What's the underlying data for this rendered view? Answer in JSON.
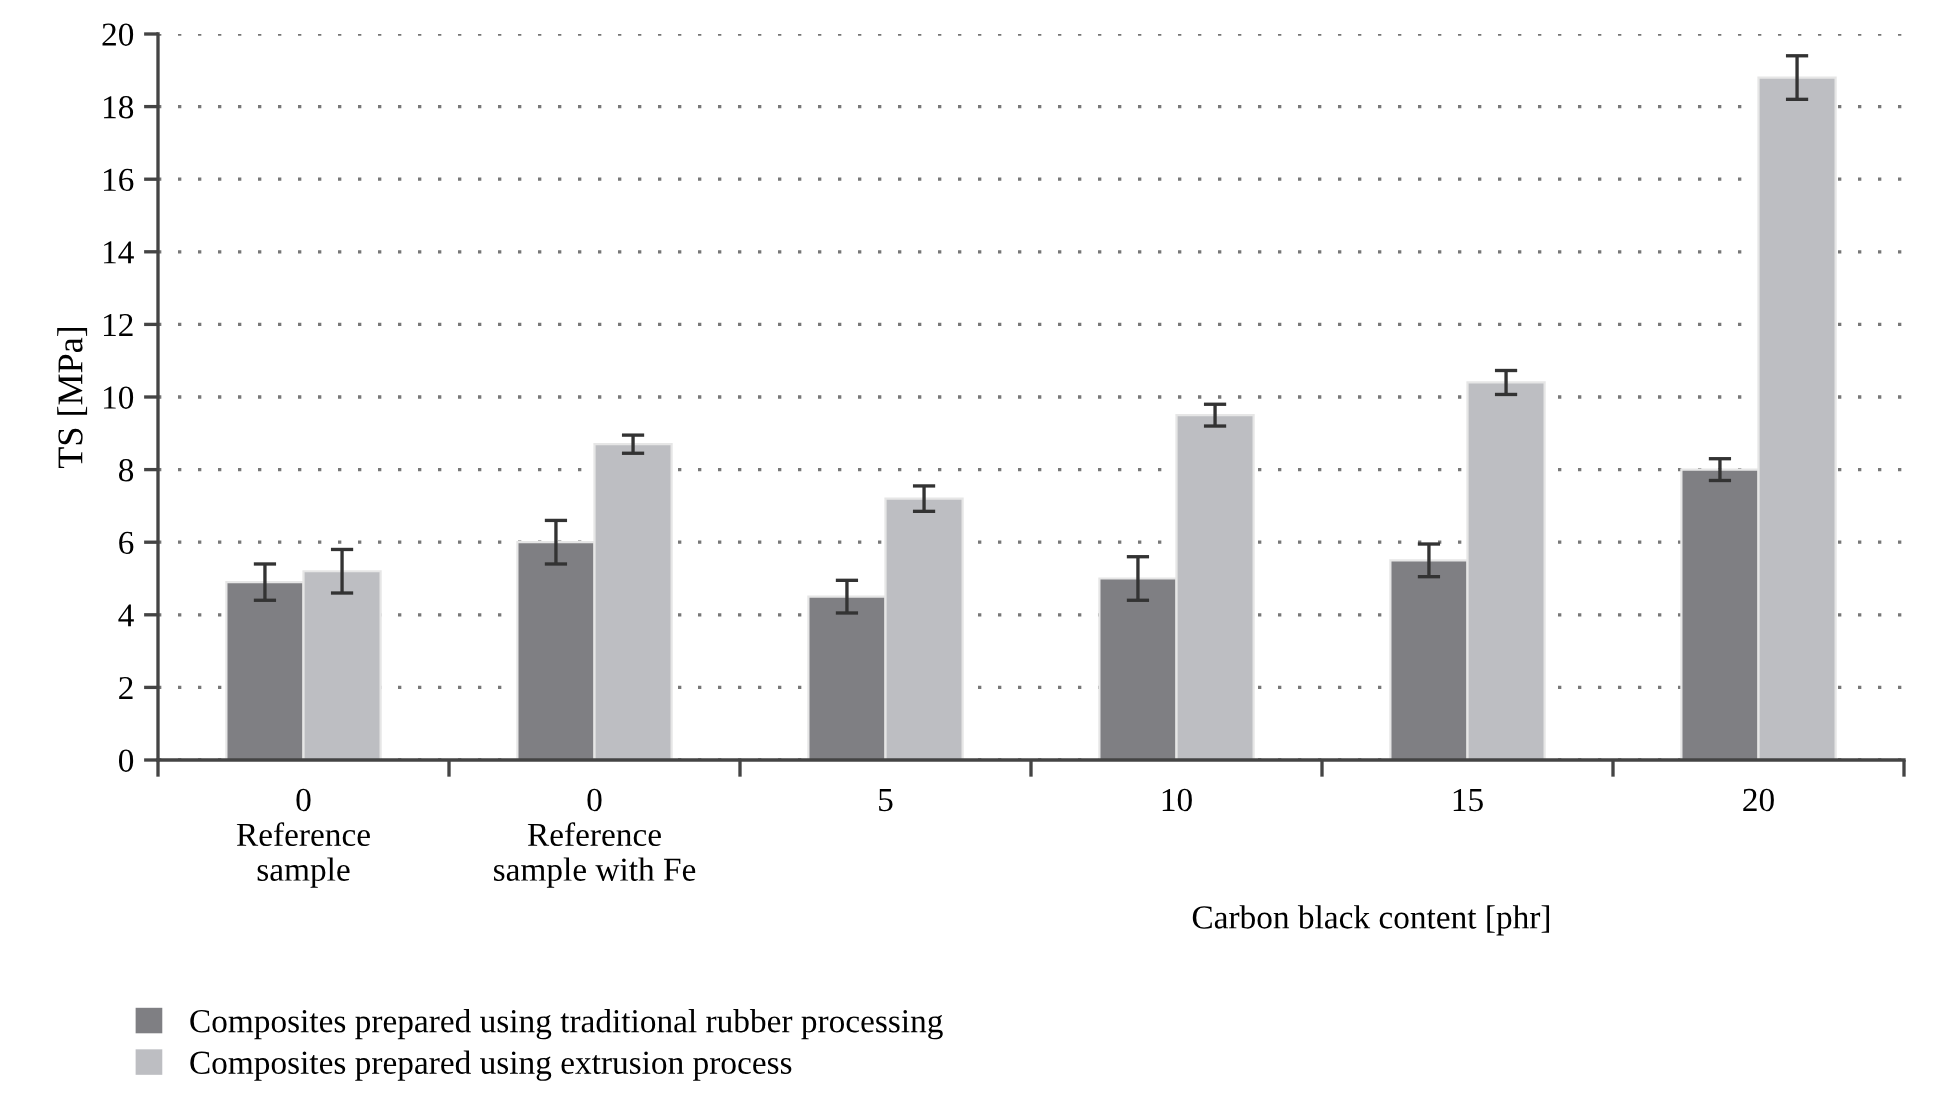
{
  "chart_data": {
    "type": "bar",
    "categories": [
      "0\nReference\nsample",
      "0\nReference\nsample with Fe",
      "5",
      "10",
      "15",
      "20"
    ],
    "xlabel": "Carbon black content [phr]",
    "ylabel": "TS [MPa]",
    "series": [
      {
        "name": "Composites prepared using traditional rubber processing",
        "color": "#7f7f83",
        "values": [
          4.9,
          6.0,
          4.5,
          5.0,
          5.5,
          8.0
        ],
        "errors": [
          0.5,
          0.6,
          0.45,
          0.6,
          0.45,
          0.3
        ]
      },
      {
        "name": "Composites prepared using extrusion process",
        "color": "#bdbec2",
        "values": [
          5.2,
          8.7,
          7.2,
          9.5,
          10.4,
          18.8
        ],
        "errors": [
          0.6,
          0.25,
          0.35,
          0.3,
          0.33,
          0.6
        ]
      }
    ],
    "ylim": [
      0,
      20
    ],
    "yticks": [
      0,
      2,
      4,
      6,
      8,
      10,
      12,
      14,
      16,
      18,
      20
    ],
    "grid": "y",
    "legend": "bottom left"
  }
}
